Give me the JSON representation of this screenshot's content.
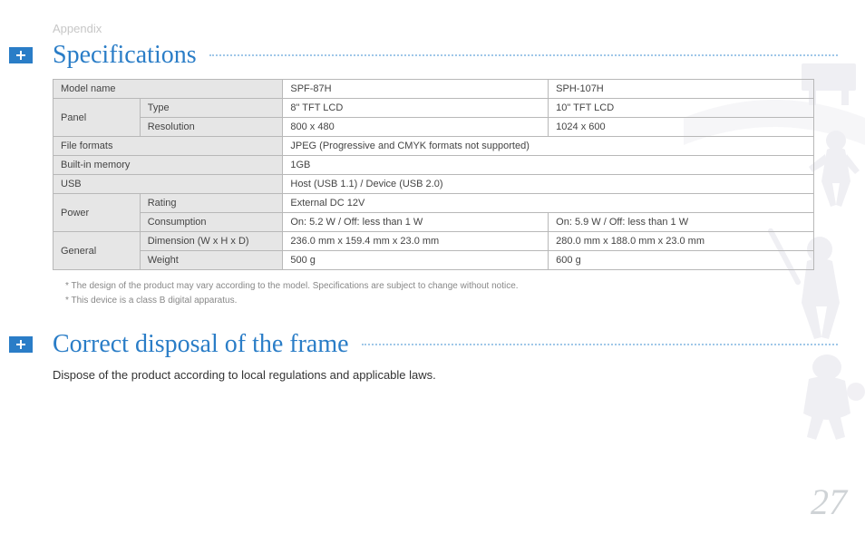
{
  "breadcrumb": "Appendix",
  "section1": {
    "title": "Specifications"
  },
  "section2": {
    "title": "Correct disposal of the frame"
  },
  "table": {
    "rows": [
      {
        "c1": "Model name",
        "c1span": 2,
        "c3": "SPF-87H",
        "c4": "SPH-107H",
        "hdr": [
          "c1"
        ]
      },
      {
        "c1": "Panel",
        "c1rowspan": 2,
        "c2": "Type",
        "c3": "8\" TFT LCD",
        "c4": "10\" TFT LCD",
        "hdr": [
          "c1",
          "c2"
        ]
      },
      {
        "c2": "Resolution",
        "c3": "800 x 480",
        "c4": "1024 x 600",
        "hdr": [
          "c2"
        ]
      },
      {
        "c1": "File formats",
        "c1span": 2,
        "c3": "JPEG (Progressive and CMYK formats not supported)",
        "c3span": 2,
        "hdr": [
          "c1"
        ]
      },
      {
        "c1": "Built-in memory",
        "c1span": 2,
        "c3": "1GB",
        "c3span": 2,
        "hdr": [
          "c1"
        ]
      },
      {
        "c1": "USB",
        "c1span": 2,
        "c3": "Host (USB 1.1) / Device (USB 2.0)",
        "c3span": 2,
        "hdr": [
          "c1"
        ]
      },
      {
        "c1": "Power",
        "c1rowspan": 2,
        "c2": "Rating",
        "c3": "External DC 12V",
        "c3span": 2,
        "hdr": [
          "c1",
          "c2"
        ]
      },
      {
        "c2": "Consumption",
        "c3": "On: 5.2 W / Off: less than 1 W",
        "c4": "On: 5.9 W / Off: less than 1 W",
        "hdr": [
          "c2"
        ]
      },
      {
        "c1": "General",
        "c1rowspan": 2,
        "c2": "Dimension (W x H x D)",
        "c3": "236.0 mm x 159.4 mm x 23.0 mm",
        "c4": "280.0 mm x 188.0 mm x 23.0 mm",
        "hdr": [
          "c1",
          "c2"
        ]
      },
      {
        "c2": "Weight",
        "c3": "500 g",
        "c4": "600 g",
        "hdr": [
          "c2"
        ]
      }
    ]
  },
  "footnotes": [
    "* The design of the product may vary according to the model. Specifications are subject to change without notice.",
    "* This device is a class B digital apparatus."
  ],
  "disposal_text": "Dispose of the product according to local regulations and applicable laws.",
  "page_number": "27",
  "colors": {
    "accent": "#2a7dc7",
    "dotted": "#9fc7e8",
    "hdr_bg": "#e6e6e6",
    "border": "#b8b8b8",
    "breadcrumb": "#c7c7c7",
    "pagenum": "#cfd3d6",
    "silhouette": "#e3e2ea"
  }
}
